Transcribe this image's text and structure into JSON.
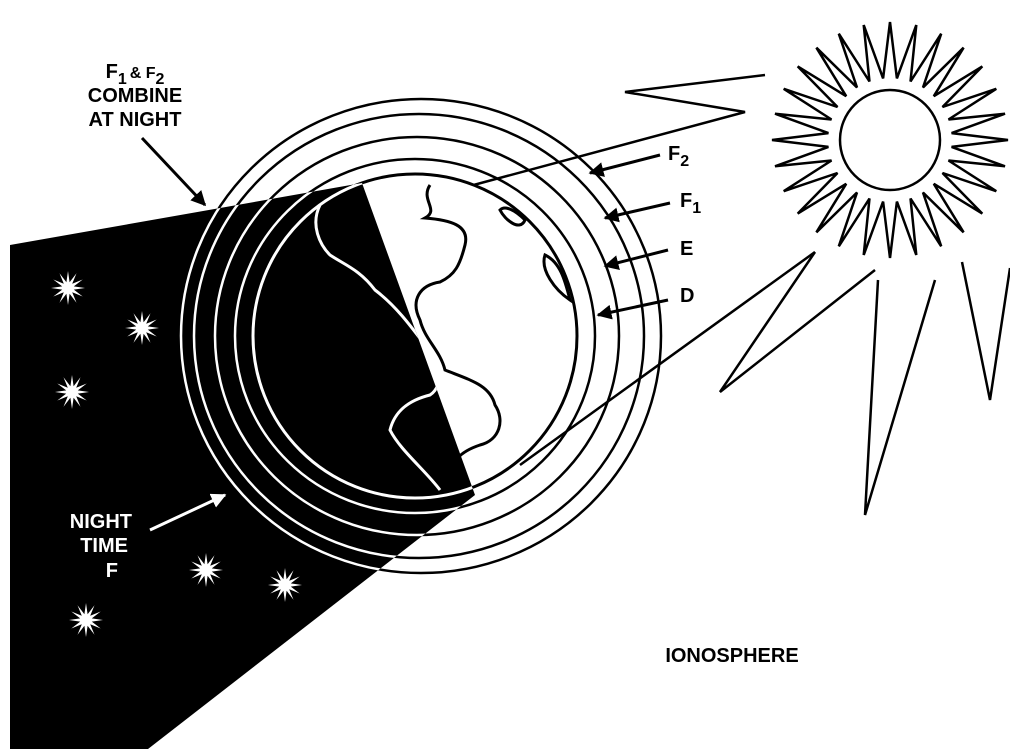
{
  "note": {
    "line1": [
      "F",
      "1",
      "& F",
      "2"
    ],
    "line2": "COMBINE",
    "line3": "AT NIGHT"
  },
  "layers": [
    {
      "name": "F",
      "sub": "2"
    },
    {
      "name": "F",
      "sub": "1"
    },
    {
      "name": "E"
    },
    {
      "name": "D"
    }
  ],
  "night": {
    "lines": [
      "NIGHT",
      "TIME",
      "F"
    ]
  },
  "caption": "IONOSPHERE"
}
